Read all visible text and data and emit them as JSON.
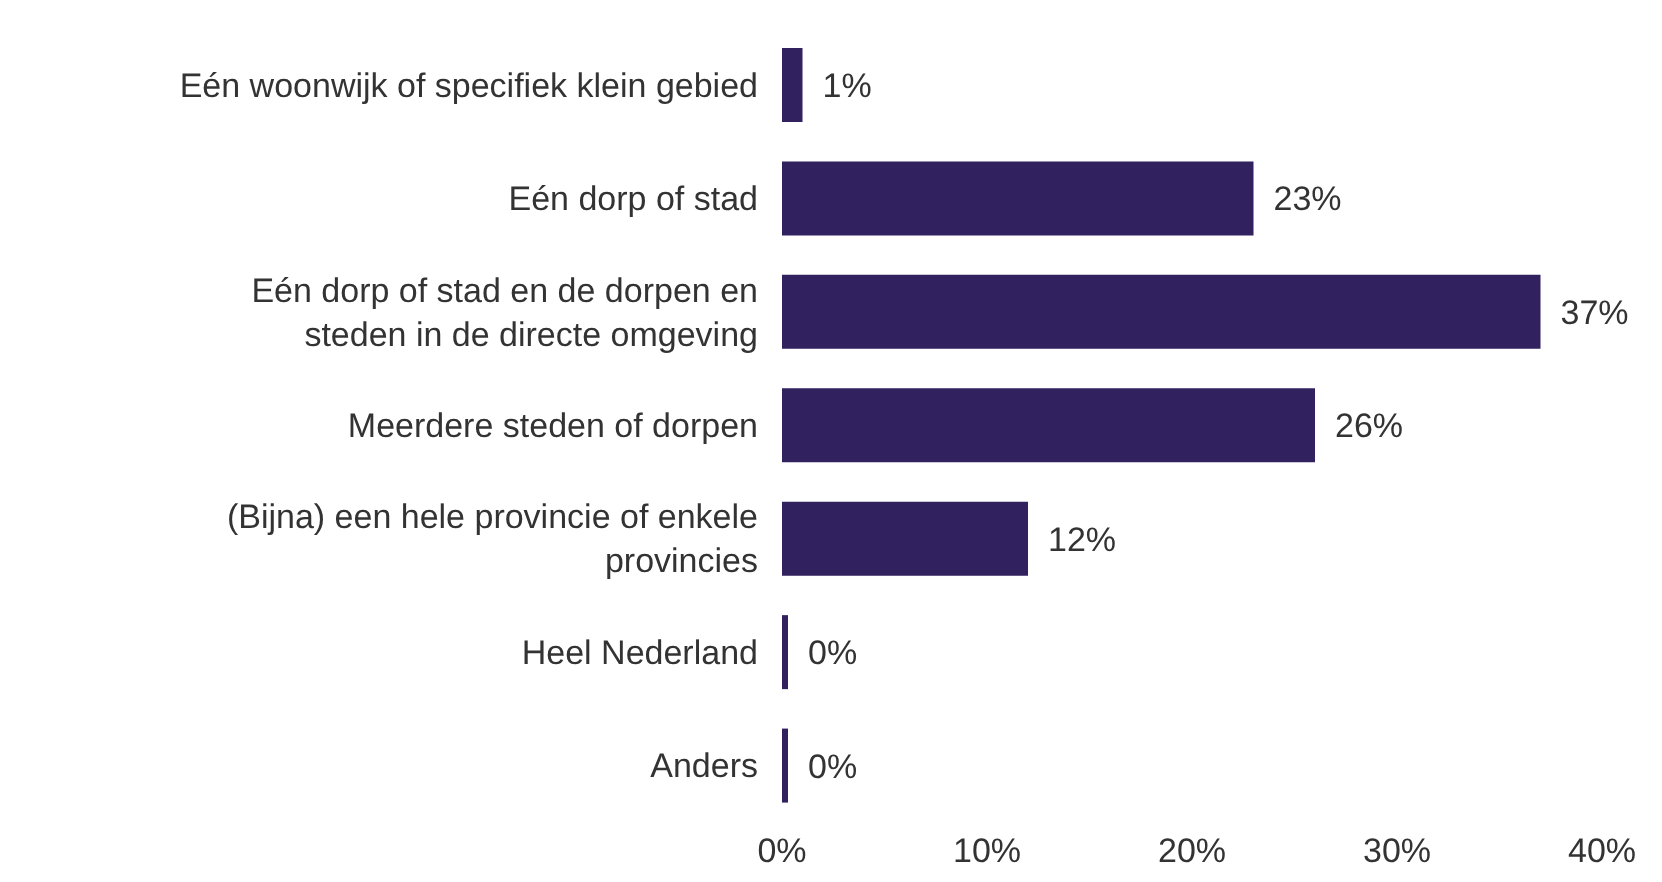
{
  "chart_data": {
    "type": "bar",
    "orientation": "horizontal",
    "categories": [
      "Eén woonwijk of specifiek klein gebied",
      "Eén dorp of stad",
      "Eén dorp of stad en de dorpen en steden in de directe omgeving",
      "Meerdere steden of dorpen",
      "(Bijna) een hele provincie of enkele provincies",
      "Heel Nederland",
      "Anders"
    ],
    "values": [
      1,
      23,
      37,
      26,
      12,
      0,
      0
    ],
    "value_labels": [
      "1%",
      "23%",
      "37%",
      "26%",
      "12%",
      "0%",
      "0%"
    ],
    "color": "#31215f",
    "xlim": [
      0,
      40
    ],
    "xticks": [
      {
        "value": 0,
        "label": "0%"
      },
      {
        "value": 10,
        "label": "10%"
      },
      {
        "value": 20,
        "label": "20%"
      },
      {
        "value": 30,
        "label": "30%"
      },
      {
        "value": 40,
        "label": "40%"
      }
    ],
    "grid": false,
    "legend": false
  }
}
